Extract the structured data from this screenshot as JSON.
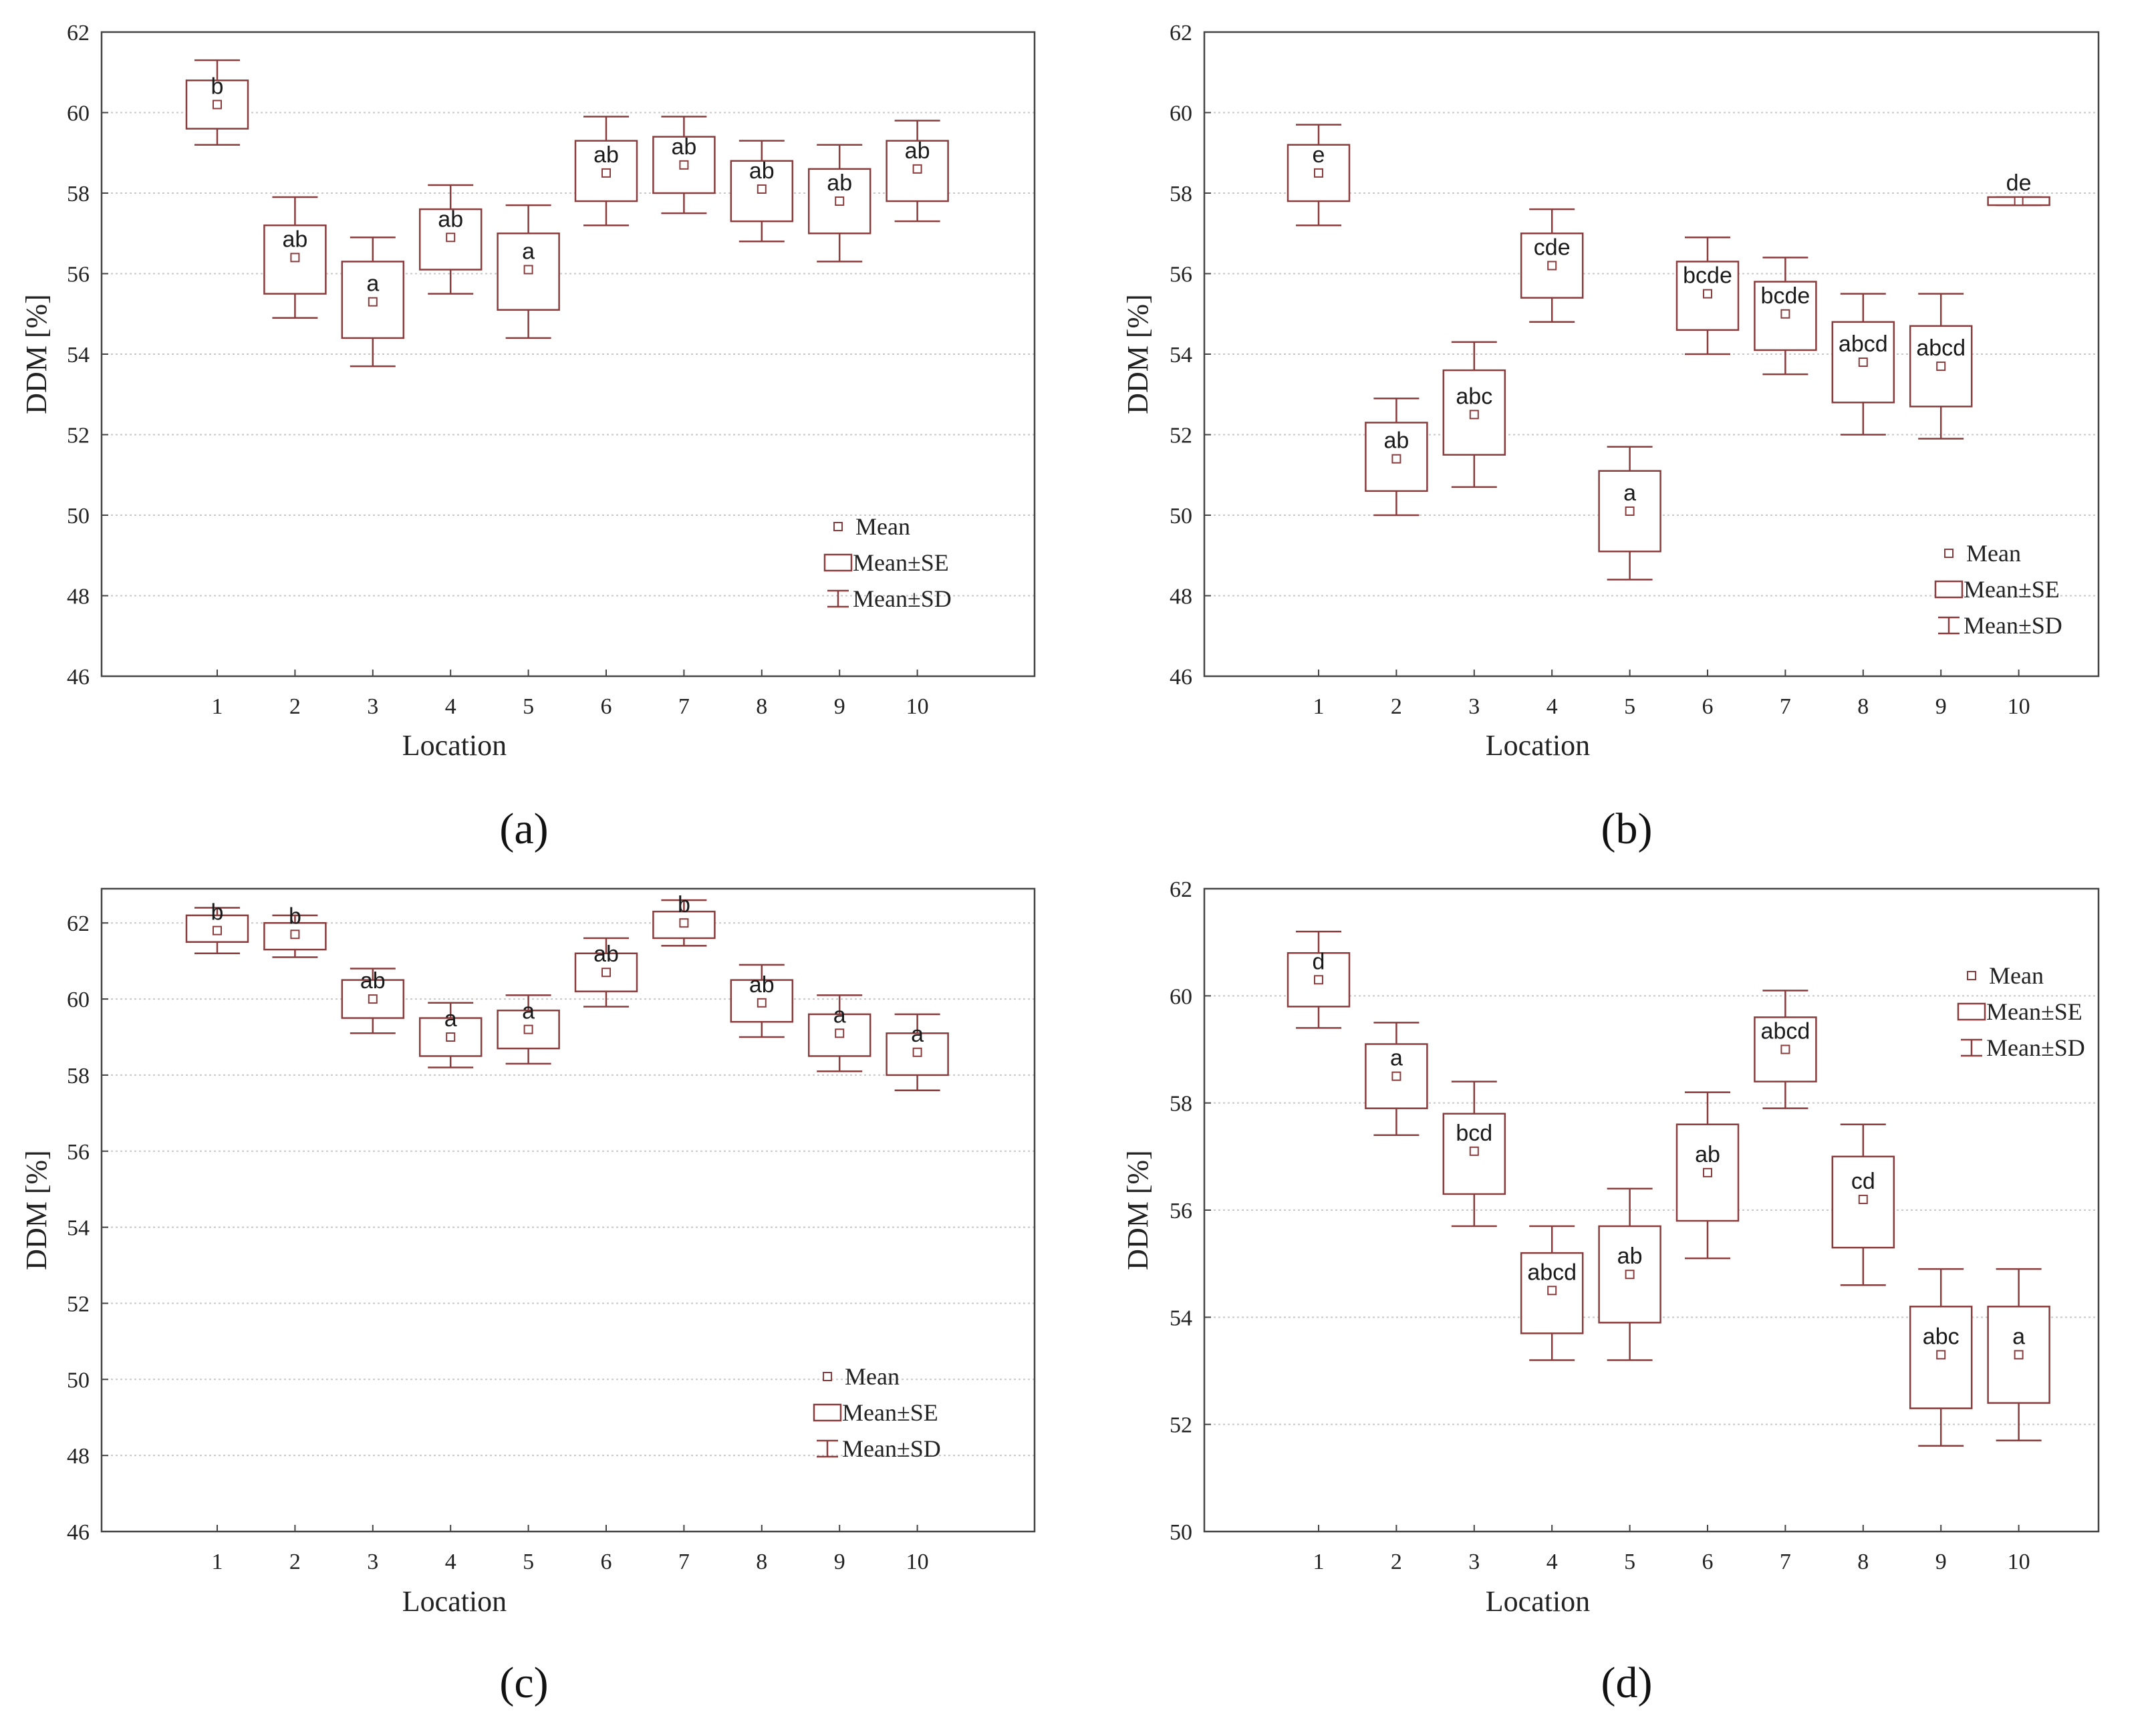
{
  "legend_labels": {
    "mean": "Mean",
    "se": "Mean±SE",
    "sd": "Mean±SD"
  },
  "colors": {
    "box": "#8a3b3b",
    "grid": "#c8c8c8",
    "axis": "#444444"
  },
  "chart_data": [
    {
      "panel": "a",
      "caption": "(a)",
      "type": "box",
      "xlabel": "Location",
      "ylabel": "DDM [%]",
      "ylim": [
        46,
        62
      ],
      "yticks": [
        46,
        48,
        50,
        52,
        54,
        56,
        58,
        60,
        62
      ],
      "categories": [
        "1",
        "2",
        "3",
        "4",
        "5",
        "6",
        "7",
        "8",
        "9",
        "10"
      ],
      "mean": [
        60.2,
        56.4,
        55.3,
        56.9,
        56.1,
        58.5,
        58.7,
        58.1,
        57.8,
        58.6
      ],
      "se_low": [
        59.6,
        55.5,
        54.4,
        56.1,
        55.1,
        57.8,
        58.0,
        57.3,
        57.0,
        57.8
      ],
      "se_high": [
        60.8,
        57.2,
        56.3,
        57.6,
        57.0,
        59.3,
        59.4,
        58.8,
        58.6,
        59.3
      ],
      "sd_low": [
        59.2,
        54.9,
        53.7,
        55.5,
        54.4,
        57.2,
        57.5,
        56.8,
        56.3,
        57.3
      ],
      "sd_high": [
        61.3,
        57.9,
        56.9,
        58.2,
        57.7,
        59.9,
        59.9,
        59.3,
        59.2,
        59.8
      ],
      "letters": [
        "b",
        "ab",
        "a",
        "ab",
        "a",
        "ab",
        "ab",
        "ab",
        "ab",
        "ab"
      ],
      "legend_position": "bottom-right"
    },
    {
      "panel": "b",
      "caption": "(b)",
      "type": "box",
      "xlabel": "Location",
      "ylabel": "DDM [%]",
      "ylim": [
        46,
        62
      ],
      "yticks": [
        46,
        48,
        50,
        52,
        54,
        56,
        58,
        60,
        62
      ],
      "categories": [
        "1",
        "2",
        "3",
        "4",
        "5",
        "6",
        "7",
        "8",
        "9",
        "10"
      ],
      "mean": [
        58.5,
        51.4,
        52.5,
        56.2,
        50.1,
        55.5,
        55.0,
        53.8,
        53.7,
        57.8
      ],
      "se_low": [
        57.8,
        50.6,
        51.5,
        55.4,
        49.1,
        54.6,
        54.1,
        52.8,
        52.7,
        57.7
      ],
      "se_high": [
        59.2,
        52.3,
        53.6,
        57.0,
        51.1,
        56.3,
        55.8,
        54.8,
        54.7,
        57.9
      ],
      "sd_low": [
        57.2,
        50.0,
        50.7,
        54.8,
        48.4,
        54.0,
        53.5,
        52.0,
        51.9,
        57.7
      ],
      "sd_high": [
        59.7,
        52.9,
        54.3,
        57.6,
        51.7,
        56.9,
        56.4,
        55.5,
        55.5,
        57.9
      ],
      "letters": [
        "e",
        "ab",
        "abc",
        "cde",
        "a",
        "bcde",
        "bcde",
        "abcd",
        "abcd",
        "de"
      ],
      "legend_position": "bottom-right"
    },
    {
      "panel": "c",
      "caption": "(c)",
      "type": "box",
      "xlabel": "Location",
      "ylabel": "DDM [%]",
      "ylim": [
        46,
        62.9
      ],
      "yticks": [
        46,
        48,
        50,
        52,
        54,
        56,
        58,
        60,
        62
      ],
      "categories": [
        "1",
        "2",
        "3",
        "4",
        "5",
        "6",
        "7",
        "8",
        "9",
        "10"
      ],
      "mean": [
        61.8,
        61.7,
        60.0,
        59.0,
        59.2,
        60.7,
        62.0,
        59.9,
        59.1,
        58.6
      ],
      "se_low": [
        61.5,
        61.3,
        59.5,
        58.5,
        58.7,
        60.2,
        61.6,
        59.4,
        58.5,
        58.0
      ],
      "se_high": [
        62.2,
        62.0,
        60.5,
        59.5,
        59.7,
        61.2,
        62.3,
        60.5,
        59.6,
        59.1
      ],
      "sd_low": [
        61.2,
        61.1,
        59.1,
        58.2,
        58.3,
        59.8,
        61.4,
        59.0,
        58.1,
        57.6
      ],
      "sd_high": [
        62.4,
        62.2,
        60.8,
        59.9,
        60.1,
        61.6,
        62.6,
        60.9,
        60.1,
        59.6
      ],
      "letters": [
        "b",
        "b",
        "ab",
        "a",
        "a",
        "ab",
        "b",
        "ab",
        "a",
        "a"
      ],
      "legend_position": "bottom-right"
    },
    {
      "panel": "d",
      "caption": "(d)",
      "type": "box",
      "xlabel": "Location",
      "ylabel": "DDM [%]",
      "ylim": [
        50,
        62
      ],
      "yticks": [
        50,
        52,
        54,
        56,
        58,
        60,
        62
      ],
      "categories": [
        "1",
        "2",
        "3",
        "4",
        "5",
        "6",
        "7",
        "8",
        "9",
        "10"
      ],
      "mean": [
        60.3,
        58.5,
        57.1,
        54.5,
        54.8,
        56.7,
        59.0,
        56.2,
        53.3,
        53.3
      ],
      "se_low": [
        59.8,
        57.9,
        56.3,
        53.7,
        53.9,
        55.8,
        58.4,
        55.3,
        52.3,
        52.4
      ],
      "se_high": [
        60.8,
        59.1,
        57.8,
        55.2,
        55.7,
        57.6,
        59.6,
        57.0,
        54.2,
        54.2
      ],
      "sd_low": [
        59.4,
        57.4,
        55.7,
        53.2,
        53.2,
        55.1,
        57.9,
        54.6,
        51.6,
        51.7
      ],
      "sd_high": [
        61.2,
        59.5,
        58.4,
        55.7,
        56.4,
        58.2,
        60.1,
        57.6,
        54.9,
        54.9
      ],
      "letters": [
        "d",
        "a",
        "bcd",
        "abcd",
        "ab",
        "ab",
        "abcd",
        "cd",
        "abc",
        "a"
      ],
      "legend_position": "top-right"
    }
  ]
}
